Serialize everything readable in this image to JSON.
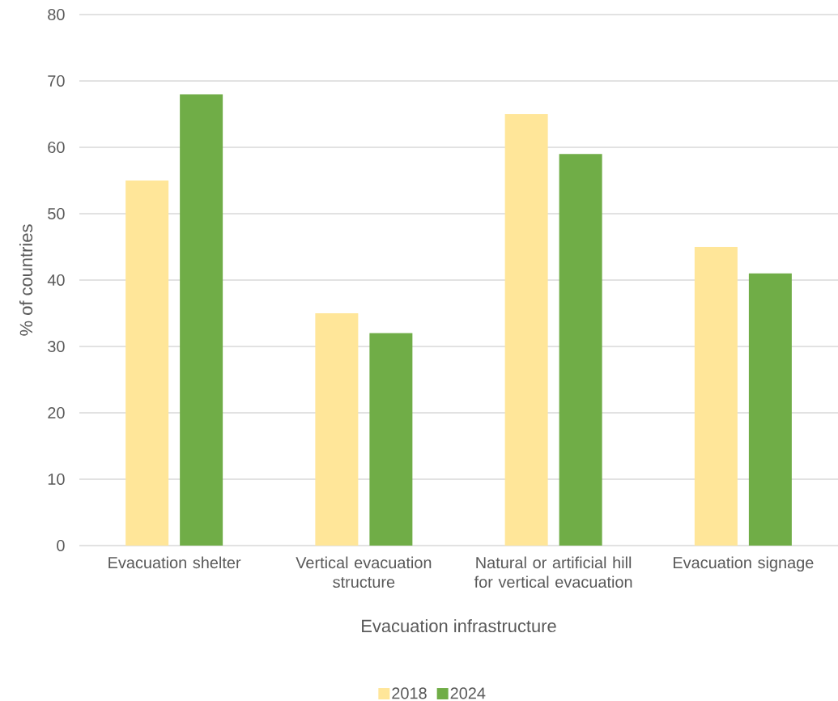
{
  "chart_data": {
    "type": "bar",
    "xlabel": "Evacuation infrastructure",
    "ylabel": "% of countries",
    "categories": [
      "Evacuation shelter",
      "Vertical evacuation structure",
      "Natural or artificial hill for vertical evacuation",
      "Evacuation signage"
    ],
    "series": [
      {
        "name": "2018",
        "color": "#ffe699",
        "values": [
          55,
          35,
          65,
          45
        ]
      },
      {
        "name": "2024",
        "color": "#70ad47",
        "values": [
          68,
          32,
          59,
          41
        ]
      }
    ],
    "ylim": [
      0,
      80
    ],
    "yticks": [
      0,
      10,
      20,
      30,
      40,
      50,
      60,
      70,
      80
    ],
    "grid": "y",
    "legend": "bottom"
  }
}
